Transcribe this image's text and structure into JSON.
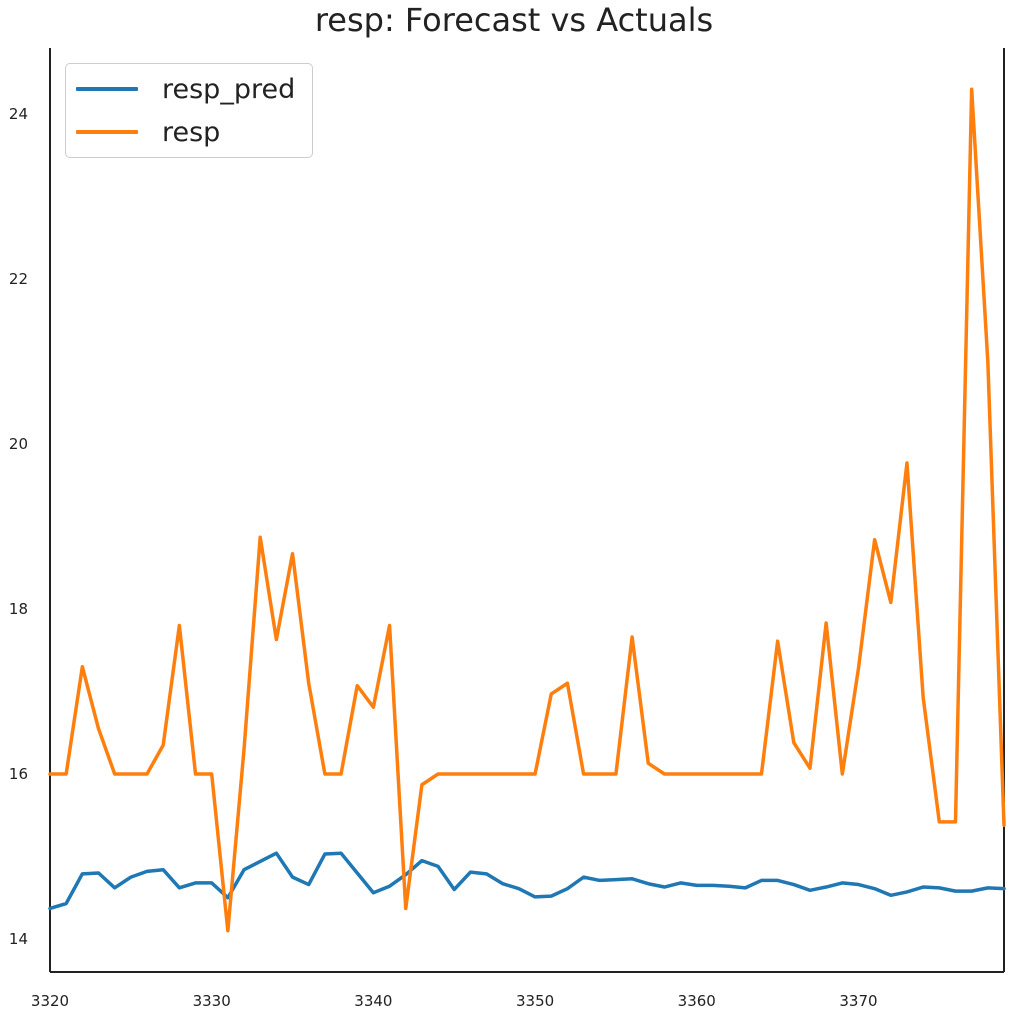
{
  "chart_data": {
    "type": "line",
    "title": "resp: Forecast vs Actuals",
    "xlabel": "",
    "ylabel": "",
    "xlim": [
      3320,
      3379
    ],
    "ylim": [
      13.6,
      24.8
    ],
    "xticks": [
      3320,
      3330,
      3340,
      3350,
      3360,
      3370
    ],
    "yticks": [
      14,
      16,
      18,
      20,
      22,
      24
    ],
    "grid": false,
    "legend": "top-left",
    "x": [
      3320,
      3321,
      3322,
      3323,
      3324,
      3325,
      3326,
      3327,
      3328,
      3329,
      3330,
      3331,
      3332,
      3333,
      3334,
      3335,
      3336,
      3337,
      3338,
      3339,
      3340,
      3341,
      3342,
      3343,
      3344,
      3345,
      3346,
      3347,
      3348,
      3349,
      3350,
      3351,
      3352,
      3353,
      3354,
      3355,
      3356,
      3357,
      3358,
      3359,
      3360,
      3361,
      3362,
      3363,
      3364,
      3365,
      3366,
      3367,
      3368,
      3369,
      3370,
      3371,
      3372,
      3373,
      3374,
      3375,
      3376,
      3377,
      3378,
      3379
    ],
    "series": [
      {
        "name": "resp_pred",
        "color": "#1f77b4",
        "values": [
          14.37,
          14.43,
          14.79,
          14.8,
          14.62,
          14.75,
          14.82,
          14.84,
          14.62,
          14.68,
          14.68,
          14.5,
          14.84,
          14.94,
          15.04,
          14.75,
          14.66,
          15.03,
          15.04,
          14.8,
          14.56,
          14.64,
          14.78,
          14.95,
          14.88,
          14.6,
          14.81,
          14.79,
          14.67,
          14.61,
          14.51,
          14.52,
          14.61,
          14.75,
          14.71,
          14.72,
          14.73,
          14.67,
          14.63,
          14.68,
          14.65,
          14.65,
          14.64,
          14.62,
          14.71,
          14.71,
          14.66,
          14.59,
          14.63,
          14.68,
          14.66,
          14.61,
          14.53,
          14.57,
          14.63,
          14.62,
          14.58,
          14.58,
          14.62,
          14.61
        ]
      },
      {
        "name": "resp",
        "color": "#ff7f0e",
        "values": [
          16.0,
          16.0,
          17.3,
          16.55,
          16.0,
          16.0,
          16.0,
          16.35,
          17.8,
          16.0,
          16.0,
          14.1,
          16.3,
          18.87,
          17.63,
          18.67,
          17.1,
          16.0,
          16.0,
          17.07,
          16.81,
          17.8,
          14.37,
          15.87,
          16.0,
          16.0,
          16.0,
          16.0,
          16.0,
          16.0,
          16.0,
          16.97,
          17.1,
          16.0,
          16.0,
          16.0,
          17.66,
          16.13,
          16.0,
          16.0,
          16.0,
          16.0,
          16.0,
          16.0,
          16.0,
          17.61,
          16.38,
          16.07,
          17.83,
          16.0,
          17.28,
          18.84,
          18.08,
          19.77,
          16.93,
          15.42,
          15.42,
          24.3,
          21.0,
          15.38
        ]
      }
    ]
  }
}
